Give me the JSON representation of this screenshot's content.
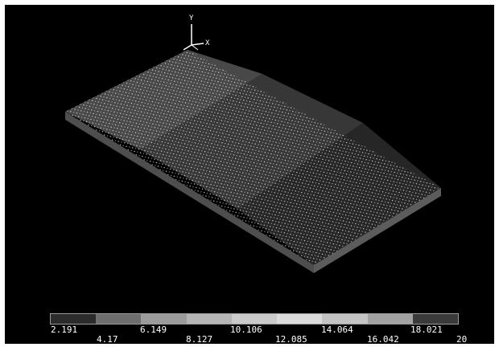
{
  "triad": {
    "x_label": "X",
    "y_label": "Y"
  },
  "legend": {
    "colors": [
      "#2b2b2b",
      "#6e6e6e",
      "#9b9b9b",
      "#b5b5b5",
      "#cacaca",
      "#dcdcdc",
      "#c4c4c4",
      "#a2a2a2",
      "#3a3a3a"
    ],
    "values": [
      "2.191",
      "4.17",
      "6.149",
      "8.127",
      "10.106",
      "12.085",
      "14.064",
      "16.042",
      "18.021",
      "20"
    ]
  },
  "model": {
    "top_colors": [
      "#484848",
      "#373737",
      "#262626"
    ],
    "side_color": "#5c5c5c",
    "front_color": "#4e4e4e",
    "node_color": "#ffffff"
  }
}
